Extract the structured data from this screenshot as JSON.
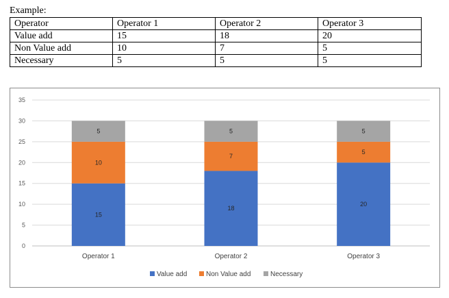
{
  "example_label": "Example:",
  "table": {
    "header": [
      "Operator",
      "Operator 1",
      "Operator 2",
      "Operator 3"
    ],
    "rows": [
      [
        "Value add",
        "15",
        "18",
        "20"
      ],
      [
        "Non Value add",
        "10",
        "7",
        "5"
      ],
      [
        "Necessary",
        "5",
        "5",
        "5"
      ]
    ]
  },
  "chart_data": {
    "type": "bar",
    "stacked": true,
    "categories": [
      "Operator 1",
      "Operator 2",
      "Operator 3"
    ],
    "series": [
      {
        "name": "Value add",
        "values": [
          15,
          18,
          20
        ],
        "color": "#4472c4"
      },
      {
        "name": "Non Value add",
        "values": [
          10,
          7,
          5
        ],
        "color": "#ed7d31"
      },
      {
        "name": "Necessary",
        "values": [
          5,
          5,
          5
        ],
        "color": "#a5a5a5"
      }
    ],
    "ylim": [
      0,
      35
    ],
    "yticks": [
      "0",
      "5",
      "10",
      "15",
      "20",
      "25",
      "30",
      "35"
    ],
    "grid": true,
    "legend": "bottom",
    "title": "",
    "xlabel": "",
    "ylabel": ""
  }
}
